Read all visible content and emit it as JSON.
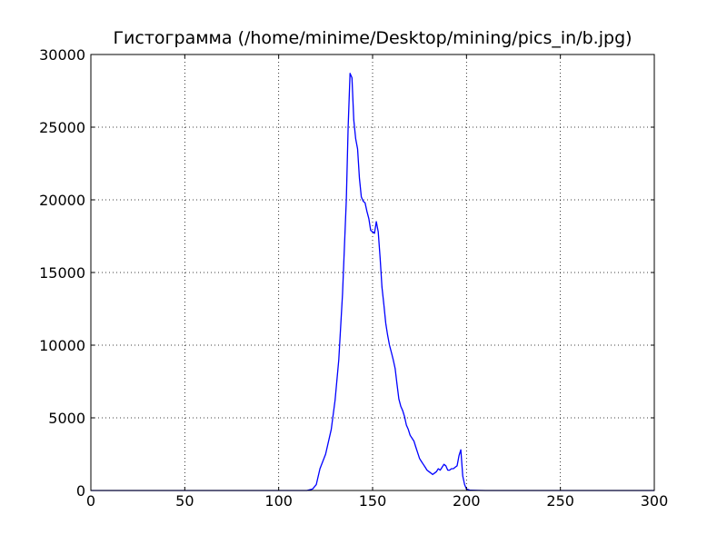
{
  "chart_data": {
    "type": "line",
    "title": "Гистограмма (/home/minime/Desktop/mining/pics_in/b.jpg)",
    "xlabel": "",
    "ylabel": "",
    "xlim": [
      0,
      300
    ],
    "ylim": [
      0,
      30000
    ],
    "xticks": [
      "0",
      "50",
      "100",
      "150",
      "200",
      "250",
      "300"
    ],
    "yticks": [
      "0",
      "5000",
      "10000",
      "15000",
      "20000",
      "25000",
      "30000"
    ],
    "grid": true,
    "line_color": "#0000ff",
    "series": [
      {
        "name": "",
        "points": [
          [
            0,
            0
          ],
          [
            115,
            0
          ],
          [
            118,
            100
          ],
          [
            120,
            400
          ],
          [
            122,
            1500
          ],
          [
            125,
            2500
          ],
          [
            128,
            4200
          ],
          [
            130,
            6200
          ],
          [
            132,
            9000
          ],
          [
            134,
            13500
          ],
          [
            136,
            20000
          ],
          [
            137,
            25000
          ],
          [
            138,
            28700
          ],
          [
            139,
            28400
          ],
          [
            140,
            25500
          ],
          [
            141,
            24200
          ],
          [
            142,
            23500
          ],
          [
            143,
            21500
          ],
          [
            144,
            20200
          ],
          [
            145,
            19900
          ],
          [
            146,
            19800
          ],
          [
            147,
            19200
          ],
          [
            148,
            18700
          ],
          [
            149,
            17900
          ],
          [
            150,
            17800
          ],
          [
            151,
            17700
          ],
          [
            152,
            18500
          ],
          [
            153,
            17800
          ],
          [
            154,
            16000
          ],
          [
            155,
            14000
          ],
          [
            156,
            12800
          ],
          [
            157,
            11500
          ],
          [
            158,
            10700
          ],
          [
            159,
            10000
          ],
          [
            160,
            9500
          ],
          [
            161,
            9000
          ],
          [
            162,
            8400
          ],
          [
            163,
            7300
          ],
          [
            164,
            6300
          ],
          [
            165,
            5800
          ],
          [
            166,
            5500
          ],
          [
            167,
            5100
          ],
          [
            168,
            4500
          ],
          [
            169,
            4200
          ],
          [
            170,
            3800
          ],
          [
            171,
            3600
          ],
          [
            172,
            3400
          ],
          [
            173,
            3000
          ],
          [
            174,
            2600
          ],
          [
            175,
            2200
          ],
          [
            176,
            2000
          ],
          [
            177,
            1800
          ],
          [
            178,
            1600
          ],
          [
            179,
            1400
          ],
          [
            180,
            1300
          ],
          [
            181,
            1200
          ],
          [
            182,
            1100
          ],
          [
            183,
            1200
          ],
          [
            184,
            1300
          ],
          [
            185,
            1500
          ],
          [
            186,
            1400
          ],
          [
            187,
            1600
          ],
          [
            188,
            1800
          ],
          [
            189,
            1700
          ],
          [
            190,
            1400
          ],
          [
            191,
            1400
          ],
          [
            192,
            1500
          ],
          [
            193,
            1500
          ],
          [
            194,
            1600
          ],
          [
            195,
            1700
          ],
          [
            196,
            2400
          ],
          [
            197,
            2800
          ],
          [
            198,
            1000
          ],
          [
            199,
            400
          ],
          [
            200,
            100
          ],
          [
            202,
            20
          ],
          [
            210,
            0
          ],
          [
            300,
            0
          ]
        ]
      }
    ]
  }
}
